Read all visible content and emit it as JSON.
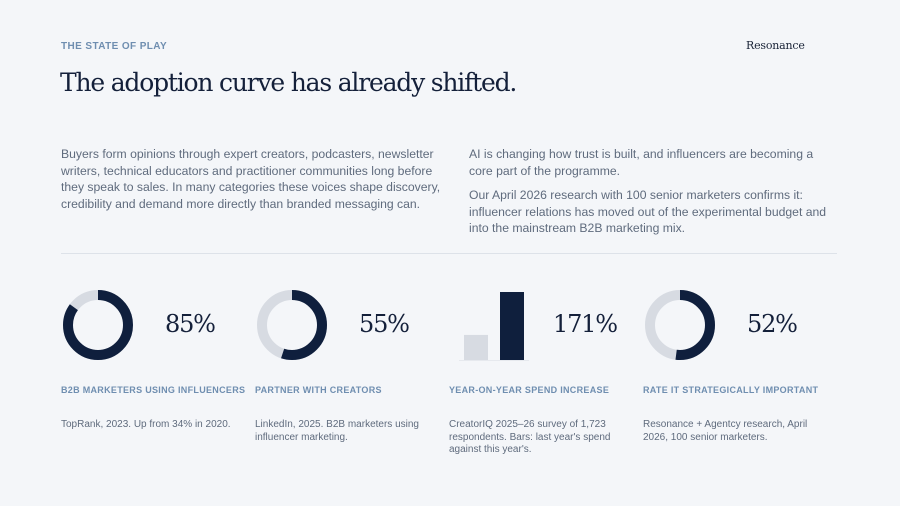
{
  "header": {
    "eyebrow": "THE STATE OF PLAY",
    "brand": "Resonance",
    "title": "The adoption curve has already shifted."
  },
  "intro": {
    "left": "Buyers form opinions through expert creators, podcasters, newsletter writers, technical educators and practitioner communities long before they speak to sales. In many categories these voices shape discovery, credibility and demand more directly than branded messaging can.",
    "right_1": "AI is changing how trust is built, and influencers are becoming a core part of the programme.",
    "right_2": "Our April 2026 research with 100 senior marketers confirms it: influencer relations has moved out of the experimental budget and into the mainstream B2B marketing mix."
  },
  "stats": [
    {
      "value": "85%",
      "percent": 85,
      "label": "B2B MARKETERS USING INFLUENCERS",
      "note": "TopRank, 2023. Up from 34% in 2020."
    },
    {
      "value": "55%",
      "percent": 55,
      "label": "PARTNER WITH CREATORS",
      "note": "LinkedIn, 2025. B2B marketers using influencer marketing."
    },
    {
      "value": "171%",
      "bars": {
        "last_year": 1,
        "this_year": 2.71
      },
      "label": "YEAR-ON-YEAR SPEND INCREASE",
      "note": "CreatorIQ 2025–26 survey of 1,723 respondents. Bars: last year's spend against this year's."
    },
    {
      "value": "52%",
      "percent": 52,
      "label": "RATE IT STRATEGICALLY IMPORTANT",
      "note": "Resonance + Agentcy research, April 2026, 100 senior marketers."
    }
  ],
  "colors": {
    "accent_dark": "#0f1f3d",
    "track": "#d7dbe2",
    "label_blue": "#6f8eb0"
  }
}
